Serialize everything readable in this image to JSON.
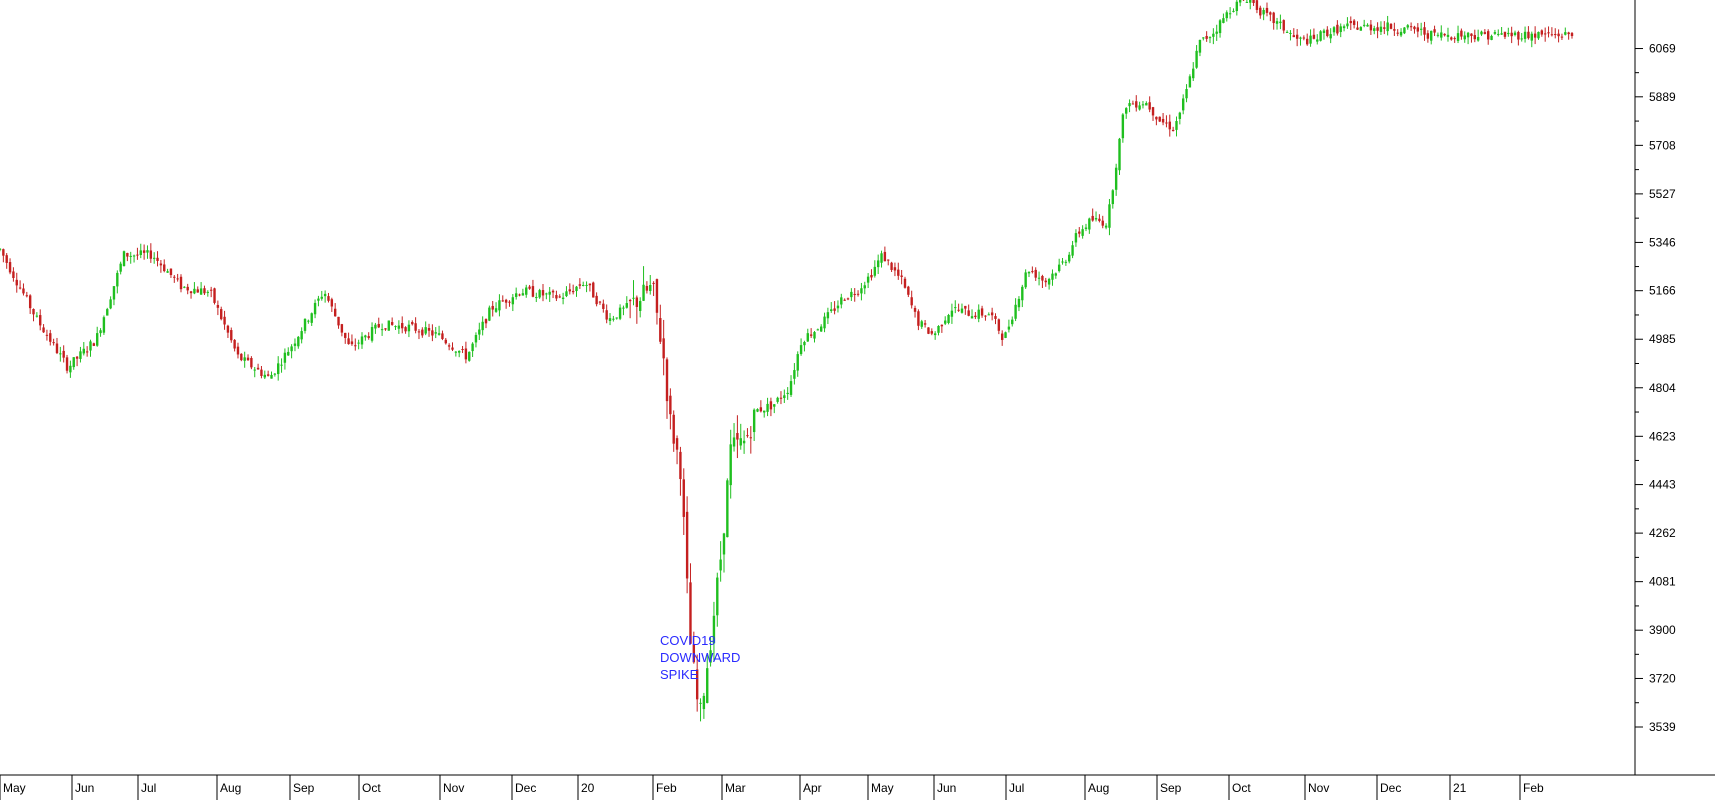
{
  "chart_data": {
    "type": "candlestick",
    "title": "",
    "ylabel": "",
    "xlabel": "",
    "ylim": [
      3360,
      6250
    ],
    "y_ticks": [
      6069,
      5889,
      5708,
      5527,
      5346,
      5166,
      4985,
      4804,
      4623,
      4443,
      4262,
      4081,
      3900,
      3720,
      3539
    ],
    "x_ticks": [
      "May",
      "Jun",
      "Jul",
      "Aug",
      "Sep",
      "Oct",
      "Nov",
      "Dec",
      "20",
      "Feb",
      "Mar",
      "Apr",
      "May",
      "Jun",
      "Jul",
      "Aug",
      "Sep",
      "Oct",
      "Nov",
      "Dec",
      "21",
      "Feb"
    ],
    "annotation": [
      "COVID19",
      "DOWNWARD",
      "SPIKE"
    ],
    "colors": {
      "up": "#1fbf1f",
      "down": "#c41f1f",
      "annotation": "#2a2aff",
      "axis": "#000000"
    },
    "grid": false,
    "x_axis_position": "bottom",
    "y_axis_position": "right",
    "series": [
      {
        "t": [
          0,
          0.0234,
          0.0431,
          0.0612,
          0.0789,
          0.0969,
          0.1156,
          0.1338,
          0.1513,
          0.1713,
          0.1875,
          0.2061,
          0.2225,
          0.2425,
          0.2606,
          0.2787,
          0.2969,
          0.3125,
          0.3313,
          0.3563,
          0.3721,
          0.3875,
          0.4031,
          0.415,
          0.4219,
          0.4263,
          0.4331,
          0.4388,
          0.445,
          0.4519,
          0.4581,
          0.465,
          0.4738,
          0.4813,
          0.4919,
          0.5019,
          0.51,
          0.5188,
          0.5281,
          0.5363,
          0.545,
          0.5531,
          0.5613,
          0.5738,
          0.5838,
          0.5938,
          0.605,
          0.6188,
          0.63,
          0.6388,
          0.6538,
          0.665,
          0.6775,
          0.6856,
          0.6944,
          0.7044,
          0.7156,
          0.7288,
          0.7381,
          0.7469,
          0.7544,
          0.7588,
          0.7631,
          0.7719,
          0.7831,
          0.7938,
          0.8031,
          0.8156,
          0.825,
          0.8356,
          0.8431,
          0.8475,
          0.85,
          0.8575,
          0.87,
          0.8788,
          0.8838,
          0.8931,
          0.9,
          0.9094,
          0.9125,
          0.915
        ],
        "c": [
          5320,
          5060,
          4880,
          4985,
          5300,
          5300,
          5180,
          5160,
          4920,
          4840,
          4980,
          5166,
          4950,
          5040,
          5030,
          5000,
          4920,
          5100,
          5166,
          5140,
          5200,
          5060,
          5120,
          5180,
          4930,
          4680,
          4500,
          3870,
          3560,
          3860,
          4150,
          4580,
          4600,
          4720,
          4740,
          4804,
          4985,
          5020,
          5080,
          5140,
          5166,
          5220,
          5300,
          5200,
          5050,
          5000,
          5100,
          5080,
          5080,
          4985,
          5250,
          5200,
          5280,
          5380,
          5430,
          5420,
          5860,
          5870,
          5800,
          5770,
          5900,
          6000,
          6090,
          6130,
          6220,
          6260,
          6200,
          6150,
          6100,
          6100,
          6130,
          6130,
          6140,
          6150,
          6150,
          6150,
          6150,
          6140,
          6140,
          6120,
          6120,
          6120
        ]
      }
    ]
  }
}
